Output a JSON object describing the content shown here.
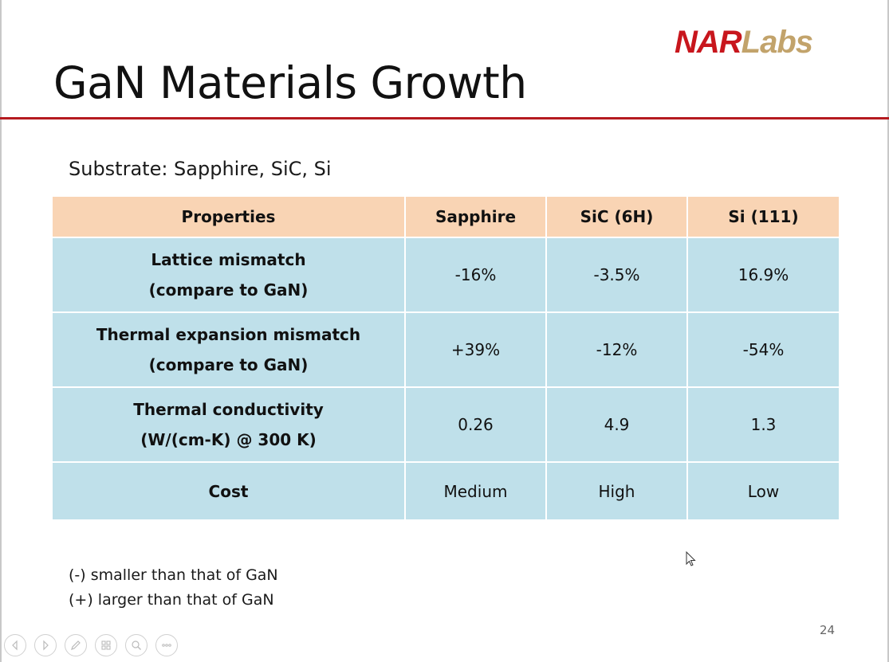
{
  "logo": {
    "part1": "NAR",
    "part2": "Labs",
    "color_primary": "#c8161d",
    "color_secondary": "#c2a36b"
  },
  "slide": {
    "title": "GaN Materials Growth",
    "subtitle": "Substrate: Sapphire, SiC, Si",
    "accent_color": "#b51a1f",
    "page_number": "24"
  },
  "table": {
    "header_color": "#f9d4b4",
    "body_color": "#bfe0ea",
    "columns": [
      "Properties",
      "Sapphire",
      "SiC (6H)",
      "Si (111)"
    ],
    "rows": [
      {
        "label_line1": "Lattice mismatch",
        "label_line2": "(compare to GaN)",
        "values": [
          "-16%",
          "-3.5%",
          "16.9%"
        ]
      },
      {
        "label_line1": "Thermal expansion mismatch",
        "label_line2": "(compare to GaN)",
        "values": [
          "+39%",
          "-12%",
          "-54%"
        ]
      },
      {
        "label_line1": "Thermal conductivity",
        "label_line2": "(W/(cm-K) @ 300 K)",
        "values": [
          "0.26",
          "4.9",
          "1.3"
        ]
      },
      {
        "label_line1": "Cost",
        "label_line2": "",
        "values": [
          "Medium",
          "High",
          "Low"
        ]
      }
    ]
  },
  "notes": [
    "(-) smaller than that of GaN",
    "(+) larger than that of GaN"
  ],
  "toolbar": {
    "icons": [
      "previous-icon",
      "next-icon",
      "pen-icon",
      "slides-icon",
      "zoom-icon",
      "more-icon"
    ]
  }
}
